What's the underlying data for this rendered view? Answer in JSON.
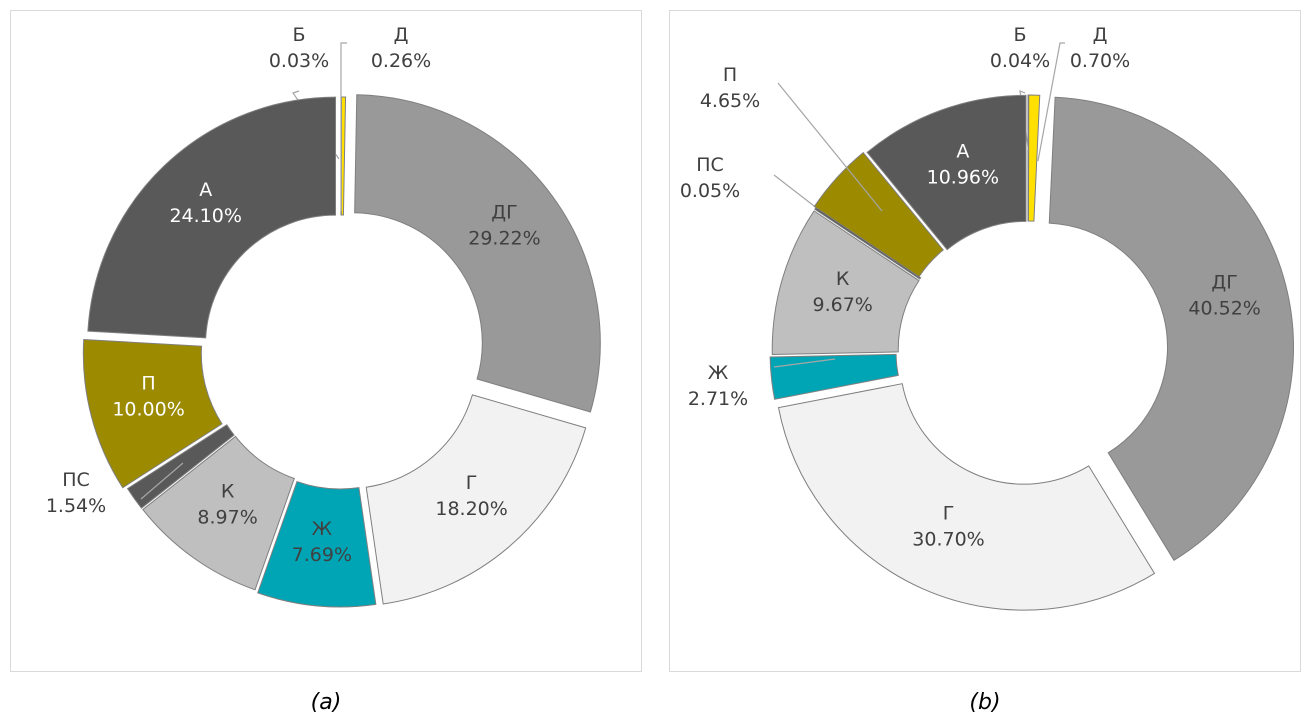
{
  "chart_data": [
    {
      "type": "pie",
      "caption": "(a)",
      "categories": [
        "Б",
        "Д",
        "ДГ",
        "Г",
        "Ж",
        "К",
        "ПС",
        "П",
        "А"
      ],
      "values": [
        0.03,
        0.26,
        29.22,
        18.2,
        7.69,
        8.97,
        1.54,
        10.0,
        24.1
      ],
      "value_labels": [
        "0.03%",
        "0.26%",
        "29.22%",
        "18.20%",
        "7.69%",
        "8.97%",
        "1.54%",
        "10.00%",
        "24.10%"
      ],
      "colors": [
        "#f2f2f2",
        "#ffe000",
        "#999999",
        "#f2f2f2",
        "#00a5b5",
        "#bfbfbf",
        "#595959",
        "#9c8a00",
        "#595959"
      ]
    },
    {
      "type": "pie",
      "caption": "(b)",
      "categories": [
        "Б",
        "Д",
        "ДГ",
        "Г",
        "Ж",
        "К",
        "ПС",
        "П",
        "А"
      ],
      "values": [
        0.04,
        0.7,
        40.52,
        30.7,
        2.71,
        9.67,
        0.05,
        4.65,
        10.96
      ],
      "value_labels": [
        "0.04%",
        "0.70%",
        "40.52%",
        "30.70%",
        "2.71%",
        "9.67%",
        "0.05%",
        "4.65%",
        "10.96%"
      ],
      "colors": [
        "#f2f2f2",
        "#ffe000",
        "#999999",
        "#f2f2f2",
        "#00a5b5",
        "#bfbfbf",
        "#595959",
        "#9c8a00",
        "#595959"
      ]
    }
  ]
}
